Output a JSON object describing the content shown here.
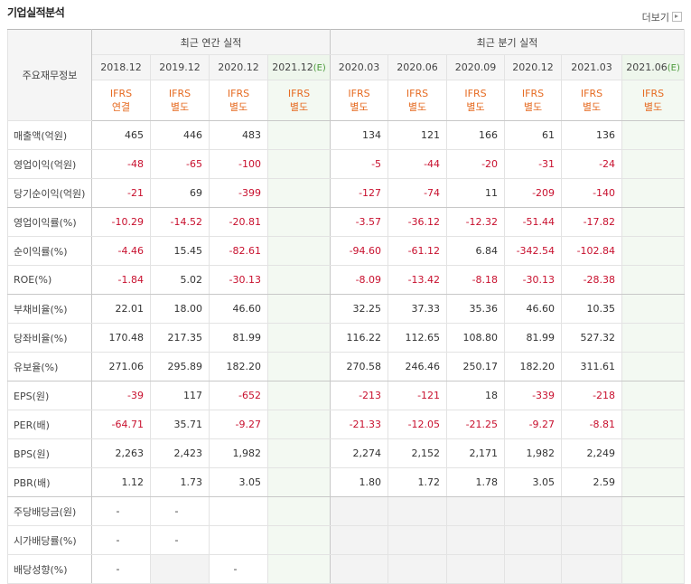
{
  "header": {
    "title": "기업실적분석",
    "more": "더보기"
  },
  "table": {
    "corner": "주요재무정보",
    "groups": [
      {
        "label": "최근 연간 실적",
        "span": 4
      },
      {
        "label": "최근 분기 실적",
        "span": 6
      }
    ],
    "columns": [
      {
        "period": "2018.12",
        "standard": [
          "IFRS",
          "연결"
        ]
      },
      {
        "period": "2019.12",
        "standard": [
          "IFRS",
          "별도"
        ]
      },
      {
        "period": "2020.12",
        "standard": [
          "IFRS",
          "별도"
        ]
      },
      {
        "period": "2021.12",
        "estimate": "(E)",
        "standard": [
          "IFRS",
          "별도"
        ]
      },
      {
        "period": "2020.03",
        "standard": [
          "IFRS",
          "별도"
        ]
      },
      {
        "period": "2020.06",
        "standard": [
          "IFRS",
          "별도"
        ]
      },
      {
        "period": "2020.09",
        "standard": [
          "IFRS",
          "별도"
        ]
      },
      {
        "period": "2020.12",
        "standard": [
          "IFRS",
          "별도"
        ]
      },
      {
        "period": "2021.03",
        "standard": [
          "IFRS",
          "별도"
        ]
      },
      {
        "period": "2021.06",
        "estimate": "(E)",
        "standard": [
          "IFRS",
          "별도"
        ]
      }
    ],
    "rows": [
      {
        "label": "매출액(억원)",
        "values": [
          "465",
          "446",
          "483",
          null,
          "134",
          "121",
          "166",
          "61",
          "136",
          null
        ]
      },
      {
        "label": "영업이익(억원)",
        "values": [
          "-48",
          "-65",
          "-100",
          null,
          "-5",
          "-44",
          "-20",
          "-31",
          "-24",
          null
        ]
      },
      {
        "label": "당기순이익(억원)",
        "values": [
          "-21",
          "69",
          "-399",
          null,
          "-127",
          "-74",
          "11",
          "-209",
          "-140",
          null
        ]
      },
      {
        "label": "영업이익률(%)",
        "values": [
          "-10.29",
          "-14.52",
          "-20.81",
          null,
          "-3.57",
          "-36.12",
          "-12.32",
          "-51.44",
          "-17.82",
          null
        ]
      },
      {
        "label": "순이익률(%)",
        "values": [
          "-4.46",
          "15.45",
          "-82.61",
          null,
          "-94.60",
          "-61.12",
          "6.84",
          "-342.54",
          "-102.84",
          null
        ]
      },
      {
        "label": "ROE(%)",
        "values": [
          "-1.84",
          "5.02",
          "-30.13",
          null,
          "-8.09",
          "-13.42",
          "-8.18",
          "-30.13",
          "-28.38",
          null
        ]
      },
      {
        "label": "부채비율(%)",
        "values": [
          "22.01",
          "18.00",
          "46.60",
          null,
          "32.25",
          "37.33",
          "35.36",
          "46.60",
          "10.35",
          null
        ]
      },
      {
        "label": "당좌비율(%)",
        "values": [
          "170.48",
          "217.35",
          "81.99",
          null,
          "116.22",
          "112.65",
          "108.80",
          "81.99",
          "527.32",
          null
        ]
      },
      {
        "label": "유보율(%)",
        "values": [
          "271.06",
          "295.89",
          "182.20",
          null,
          "270.58",
          "246.46",
          "250.17",
          "182.20",
          "311.61",
          null
        ]
      },
      {
        "label": "EPS(원)",
        "values": [
          "-39",
          "117",
          "-652",
          null,
          "-213",
          "-121",
          "18",
          "-339",
          "-218",
          null
        ]
      },
      {
        "label": "PER(배)",
        "values": [
          "-64.71",
          "35.71",
          "-9.27",
          null,
          "-21.33",
          "-12.05",
          "-21.25",
          "-9.27",
          "-8.81",
          null
        ]
      },
      {
        "label": "BPS(원)",
        "values": [
          "2,263",
          "2,423",
          "1,982",
          null,
          "2,274",
          "2,152",
          "2,171",
          "1,982",
          "2,249",
          null
        ]
      },
      {
        "label": "PBR(배)",
        "values": [
          "1.12",
          "1.73",
          "3.05",
          null,
          "1.80",
          "1.72",
          "1.78",
          "3.05",
          "2.59",
          null
        ]
      },
      {
        "label": "주당배당금(원)",
        "values": [
          "-",
          "-",
          null,
          null,
          null,
          null,
          null,
          null,
          null,
          null
        ]
      },
      {
        "label": "시가배당률(%)",
        "values": [
          "-",
          "-",
          null,
          null,
          null,
          null,
          null,
          null,
          null,
          null
        ]
      },
      {
        "label": "배당성향(%)",
        "values": [
          "-",
          null,
          "-",
          null,
          null,
          null,
          null,
          null,
          null,
          null
        ]
      }
    ]
  }
}
